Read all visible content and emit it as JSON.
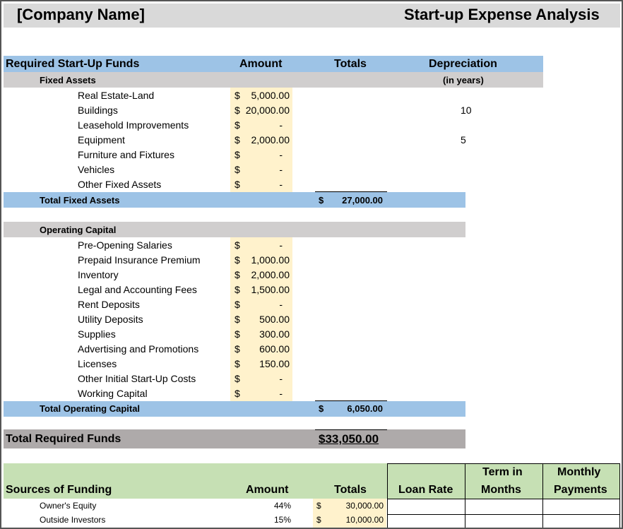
{
  "header": {
    "company": "[Company Name]",
    "title": "Start-up Expense Analysis"
  },
  "columns": {
    "required": "Required Start-Up Funds",
    "amount": "Amount",
    "totals": "Totals",
    "depreciation": "Depreciation",
    "in_years": "(in years)"
  },
  "fixed_assets": {
    "section_label": "Fixed Assets",
    "items": [
      {
        "label": "Real Estate-Land",
        "dollar": "$",
        "amount": "5,000.00",
        "depreciation": ""
      },
      {
        "label": "Buildings",
        "dollar": "$",
        "amount": "20,000.00",
        "depreciation": "10"
      },
      {
        "label": "Leasehold Improvements",
        "dollar": "$",
        "amount": "-",
        "depreciation": ""
      },
      {
        "label": "Equipment",
        "dollar": "$",
        "amount": "2,000.00",
        "depreciation": "5"
      },
      {
        "label": "Furniture and Fixtures",
        "dollar": "$",
        "amount": "-",
        "depreciation": ""
      },
      {
        "label": "Vehicles",
        "dollar": "$",
        "amount": "-",
        "depreciation": ""
      },
      {
        "label": "Other Fixed Assets",
        "dollar": "$",
        "amount": "-",
        "depreciation": ""
      }
    ],
    "total_label": "Total Fixed Assets",
    "total_dollar": "$",
    "total_value": "27,000.00"
  },
  "operating_capital": {
    "section_label": "Operating Capital",
    "items": [
      {
        "label": "Pre-Opening Salaries",
        "dollar": "$",
        "amount": "-"
      },
      {
        "label": "Prepaid Insurance Premium",
        "dollar": "$",
        "amount": "1,000.00"
      },
      {
        "label": "Inventory",
        "dollar": "$",
        "amount": "2,000.00"
      },
      {
        "label": "Legal and Accounting Fees",
        "dollar": "$",
        "amount": "1,500.00"
      },
      {
        "label": "Rent Deposits",
        "dollar": "$",
        "amount": "-"
      },
      {
        "label": "Utility Deposits",
        "dollar": "$",
        "amount": "500.00"
      },
      {
        "label": "Supplies",
        "dollar": "$",
        "amount": "300.00"
      },
      {
        "label": "Advertising and Promotions",
        "dollar": "$",
        "amount": "600.00"
      },
      {
        "label": "Licenses",
        "dollar": "$",
        "amount": "150.00"
      },
      {
        "label": "Other Initial Start-Up Costs",
        "dollar": "$",
        "amount": "-"
      },
      {
        "label": "Working Capital",
        "dollar": "$",
        "amount": "-"
      }
    ],
    "total_label": "Total Operating Capital",
    "total_dollar": "$",
    "total_value": "6,050.00"
  },
  "required": {
    "label": "Total Required Funds",
    "value": "$33,050.00"
  },
  "funding": {
    "header_label": "Sources of Funding",
    "amount_label": "Amount",
    "totals_label": "Totals",
    "loan_rate_label": "Loan Rate",
    "term_label_1": "Term in",
    "term_label_2": "Months",
    "monthly_label_1": "Monthly",
    "monthly_label_2": "Payments",
    "rows": [
      {
        "label": "Owner's Equity",
        "percent": "44%",
        "dollar": "$",
        "total": "30,000.00"
      },
      {
        "label": "Outside Investors",
        "percent": "15%",
        "dollar": "$",
        "total": "10,000.00"
      }
    ]
  }
}
